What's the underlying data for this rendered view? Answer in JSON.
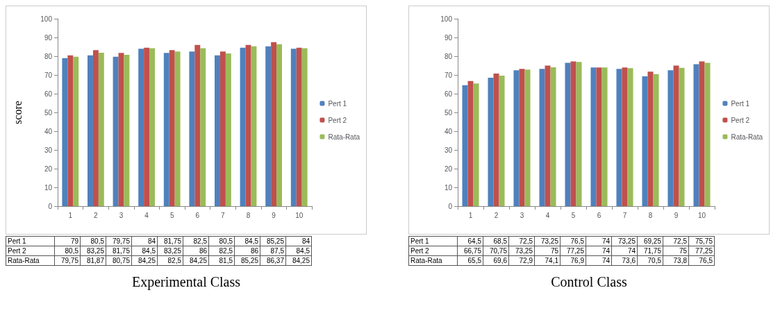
{
  "chart_data": [
    {
      "type": "bar",
      "title": "Experimental Class",
      "ylabel": "score",
      "categories": [
        "1",
        "2",
        "3",
        "4",
        "5",
        "6",
        "7",
        "8",
        "9",
        "10"
      ],
      "ylim": [
        0,
        100
      ],
      "yticks": [
        0,
        10,
        20,
        30,
        40,
        50,
        60,
        70,
        80,
        90,
        100
      ],
      "grid": false,
      "legend": "right",
      "series": [
        {
          "name": "Pert 1",
          "color": "#4f81bd",
          "values": [
            79,
            80.5,
            79.75,
            84,
            81.75,
            82.5,
            80.5,
            84.5,
            85.25,
            84
          ],
          "value_labels": [
            "79",
            "80,5",
            "79,75",
            "84",
            "81,75",
            "82,5",
            "80,5",
            "84,5",
            "85,25",
            "84"
          ]
        },
        {
          "name": "Pert 2",
          "color": "#c0504d",
          "values": [
            80.5,
            83.25,
            81.75,
            84.5,
            83.25,
            86,
            82.5,
            86,
            87.5,
            84.5
          ],
          "value_labels": [
            "80,5",
            "83,25",
            "81,75",
            "84,5",
            "83,25",
            "86",
            "82,5",
            "86",
            "87,5",
            "84,5"
          ]
        },
        {
          "name": "Rata-Rata",
          "color": "#9bbb59",
          "values": [
            79.75,
            81.87,
            80.75,
            84.25,
            82.5,
            84.25,
            81.5,
            85.25,
            86.37,
            84.25
          ],
          "value_labels": [
            "79,75",
            "81,87",
            "80,75",
            "84,25",
            "82,5",
            "84,25",
            "81,5",
            "85,25",
            "86,37",
            "84,25"
          ]
        }
      ]
    },
    {
      "type": "bar",
      "title": "Control Class",
      "categories": [
        "1",
        "2",
        "3",
        "4",
        "5",
        "6",
        "7",
        "8",
        "9",
        "10"
      ],
      "ylim": [
        0,
        100
      ],
      "yticks": [
        0,
        10,
        20,
        30,
        40,
        50,
        60,
        70,
        80,
        90,
        100
      ],
      "grid": false,
      "legend": "right",
      "series": [
        {
          "name": "Pert 1",
          "color": "#4f81bd",
          "values": [
            64.5,
            68.5,
            72.5,
            73.25,
            76.5,
            74,
            73.25,
            69.25,
            72.5,
            75.75
          ],
          "value_labels": [
            "64,5",
            "68,5",
            "72,5",
            "73,25",
            "76,5",
            "74",
            "73,25",
            "69,25",
            "72,5",
            "75,75"
          ]
        },
        {
          "name": "Pert 2",
          "color": "#c0504d",
          "values": [
            66.75,
            70.75,
            73.25,
            75,
            77.25,
            74,
            74,
            71.75,
            75,
            77.25
          ],
          "value_labels": [
            "66,75",
            "70,75",
            "73,25",
            "75",
            "77,25",
            "74",
            "74",
            "71,75",
            "75",
            "77,25"
          ]
        },
        {
          "name": "Rata-Rata",
          "color": "#9bbb59",
          "values": [
            65.5,
            69.6,
            72.9,
            74.1,
            76.9,
            74,
            73.6,
            70.5,
            73.8,
            76.5
          ],
          "value_labels": [
            "65,5",
            "69,6",
            "72,9",
            "74,1",
            "76,9",
            "74",
            "73,6",
            "70,5",
            "73,8",
            "76,5"
          ]
        }
      ]
    }
  ]
}
